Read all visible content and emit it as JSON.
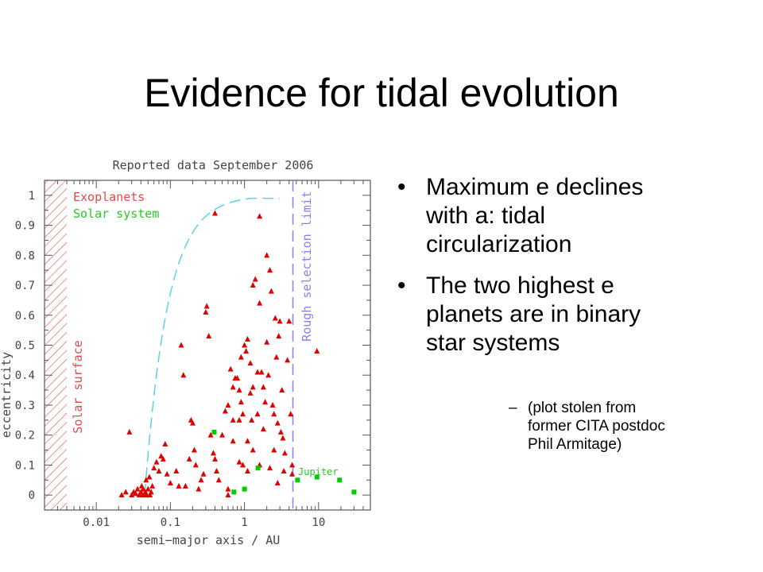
{
  "slide": {
    "title": "Evidence for tidal evolution",
    "bullets": [
      "Maximum e declines with a: tidal circularization",
      "The two highest e planets are in binary star systems"
    ],
    "sub_bullet": "(plot stolen from former CITA postdoc Phil Armitage)",
    "bullet_symbol": "•",
    "dash_symbol": "–"
  },
  "chart_data": {
    "type": "scatter",
    "title": "Reported data September 2006",
    "xlabel": "semi−major axis / AU",
    "ylabel": "eccentricity",
    "x_scale": "log",
    "xlim": [
      0.002,
      50
    ],
    "ylim": [
      -0.05,
      1.05
    ],
    "x_ticks": [
      0.01,
      0.1,
      1,
      10
    ],
    "x_tick_labels": [
      "0.01",
      "0.1",
      "1",
      "10"
    ],
    "y_ticks": [
      0,
      0.1,
      0.2,
      0.3,
      0.4,
      0.5,
      0.6,
      0.7,
      0.8,
      0.9,
      1
    ],
    "y_tick_labels": [
      "0",
      "0.1",
      "0.2",
      "0.3",
      "0.4",
      "0.5",
      "0.6",
      "0.7",
      "0.8",
      "0.9",
      "1"
    ],
    "annotations": {
      "solar_surface": "Solar surface",
      "selection_limit": "Rough selection limit",
      "jupiter": "Jupiter"
    },
    "colors": {
      "exoplanets": "#e00000",
      "solar_system": "#00cc00",
      "curve": "#5ad2ee",
      "limit": "#8a7ff0",
      "hatch": "#e24a4a",
      "frame": "#555555"
    },
    "solar_surface_a": 0.0047,
    "selection_limit_a": 4.5,
    "series": [
      {
        "name": "Exoplanets",
        "marker": "triangle",
        "points": [
          [
            0.022,
            0.0
          ],
          [
            0.025,
            0.01
          ],
          [
            0.03,
            0.0
          ],
          [
            0.032,
            0.01
          ],
          [
            0.034,
            0.005
          ],
          [
            0.036,
            0.02
          ],
          [
            0.038,
            0.0
          ],
          [
            0.04,
            0.01
          ],
          [
            0.041,
            0.03
          ],
          [
            0.042,
            0.0
          ],
          [
            0.043,
            0.02
          ],
          [
            0.045,
            0.0
          ],
          [
            0.046,
            0.01
          ],
          [
            0.047,
            0.05
          ],
          [
            0.048,
            0.0
          ],
          [
            0.05,
            0.02
          ],
          [
            0.052,
            0.06
          ],
          [
            0.053,
            0.0
          ],
          [
            0.055,
            0.01
          ],
          [
            0.057,
            0.03
          ],
          [
            0.06,
            0.09
          ],
          [
            0.065,
            0.11
          ],
          [
            0.07,
            0.08
          ],
          [
            0.075,
            0.13
          ],
          [
            0.08,
            0.12
          ],
          [
            0.085,
            0.17
          ],
          [
            0.09,
            0.07
          ],
          [
            0.1,
            0.04
          ],
          [
            0.028,
            0.21
          ],
          [
            0.12,
            0.08
          ],
          [
            0.13,
            0.03
          ],
          [
            0.14,
            0.5
          ],
          [
            0.15,
            0.4
          ],
          [
            0.16,
            0.03
          ],
          [
            0.18,
            0.12
          ],
          [
            0.19,
            0.25
          ],
          [
            0.2,
            0.24
          ],
          [
            0.21,
            0.15
          ],
          [
            0.22,
            0.1
          ],
          [
            0.24,
            0.02
          ],
          [
            0.26,
            0.05
          ],
          [
            0.28,
            0.07
          ],
          [
            0.3,
            0.61
          ],
          [
            0.31,
            0.63
          ],
          [
            0.33,
            0.53
          ],
          [
            0.35,
            0.2
          ],
          [
            0.38,
            0.14
          ],
          [
            0.4,
            0.12
          ],
          [
            0.42,
            0.08
          ],
          [
            0.45,
            0.05
          ],
          [
            0.5,
            0.2
          ],
          [
            0.55,
            0.28
          ],
          [
            0.6,
            0.3
          ],
          [
            0.6,
            0.02
          ],
          [
            0.65,
            0.42
          ],
          [
            0.7,
            0.36
          ],
          [
            0.7,
            0.18
          ],
          [
            0.75,
            0.39
          ],
          [
            0.8,
            0.39
          ],
          [
            0.85,
            0.35
          ],
          [
            0.85,
            0.25
          ],
          [
            0.9,
            0.31
          ],
          [
            0.9,
            0.46
          ],
          [
            0.95,
            0.27
          ],
          [
            0.95,
            0.1
          ],
          [
            1.0,
            0.5
          ],
          [
            1.05,
            0.48
          ],
          [
            1.1,
            0.52
          ],
          [
            1.1,
            0.08
          ],
          [
            1.2,
            0.44
          ],
          [
            1.2,
            0.34
          ],
          [
            1.25,
            0.25
          ],
          [
            1.3,
            0.7
          ],
          [
            1.3,
            0.36
          ],
          [
            1.4,
            0.72
          ],
          [
            1.5,
            0.41
          ],
          [
            1.5,
            0.27
          ],
          [
            1.6,
            0.64
          ],
          [
            1.7,
            0.41
          ],
          [
            1.8,
            0.36
          ],
          [
            1.9,
            0.31
          ],
          [
            2.0,
            0.51
          ],
          [
            2.0,
            0.8
          ],
          [
            2.1,
            0.4
          ],
          [
            2.2,
            0.75
          ],
          [
            2.3,
            0.68
          ],
          [
            2.4,
            0.3
          ],
          [
            2.5,
            0.27
          ],
          [
            2.6,
            0.59
          ],
          [
            2.7,
            0.46
          ],
          [
            2.8,
            0.24
          ],
          [
            2.9,
            0.53
          ],
          [
            3.0,
            0.58
          ],
          [
            3.1,
            0.21
          ],
          [
            3.2,
            0.35
          ],
          [
            3.3,
            0.19
          ],
          [
            3.5,
            0.14
          ],
          [
            3.8,
            0.45
          ],
          [
            4.0,
            0.58
          ],
          [
            4.2,
            0.27
          ],
          [
            4.4,
            0.1
          ],
          [
            2.2,
            0.09
          ],
          [
            1.6,
            0.1
          ],
          [
            1.3,
            0.15
          ],
          [
            0.6,
            0.0
          ],
          [
            0.85,
            0.11
          ],
          [
            2.8,
            0.04
          ],
          [
            3.4,
            0.08
          ],
          [
            4.4,
            0.07
          ],
          [
            0.7,
            0.25
          ],
          [
            1.1,
            0.18
          ],
          [
            2.5,
            0.15
          ],
          [
            1.8,
            0.22
          ],
          [
            9.5,
            0.48
          ],
          [
            0.4,
            0.94
          ],
          [
            1.6,
            0.93
          ]
        ]
      },
      {
        "name": "Solar system",
        "marker": "square",
        "points": [
          [
            0.39,
            0.21
          ],
          [
            0.72,
            0.01
          ],
          [
            1.0,
            0.02
          ],
          [
            1.52,
            0.09
          ],
          [
            5.2,
            0.05
          ],
          [
            9.5,
            0.06
          ],
          [
            19.2,
            0.05
          ],
          [
            30.1,
            0.01
          ]
        ]
      }
    ]
  }
}
